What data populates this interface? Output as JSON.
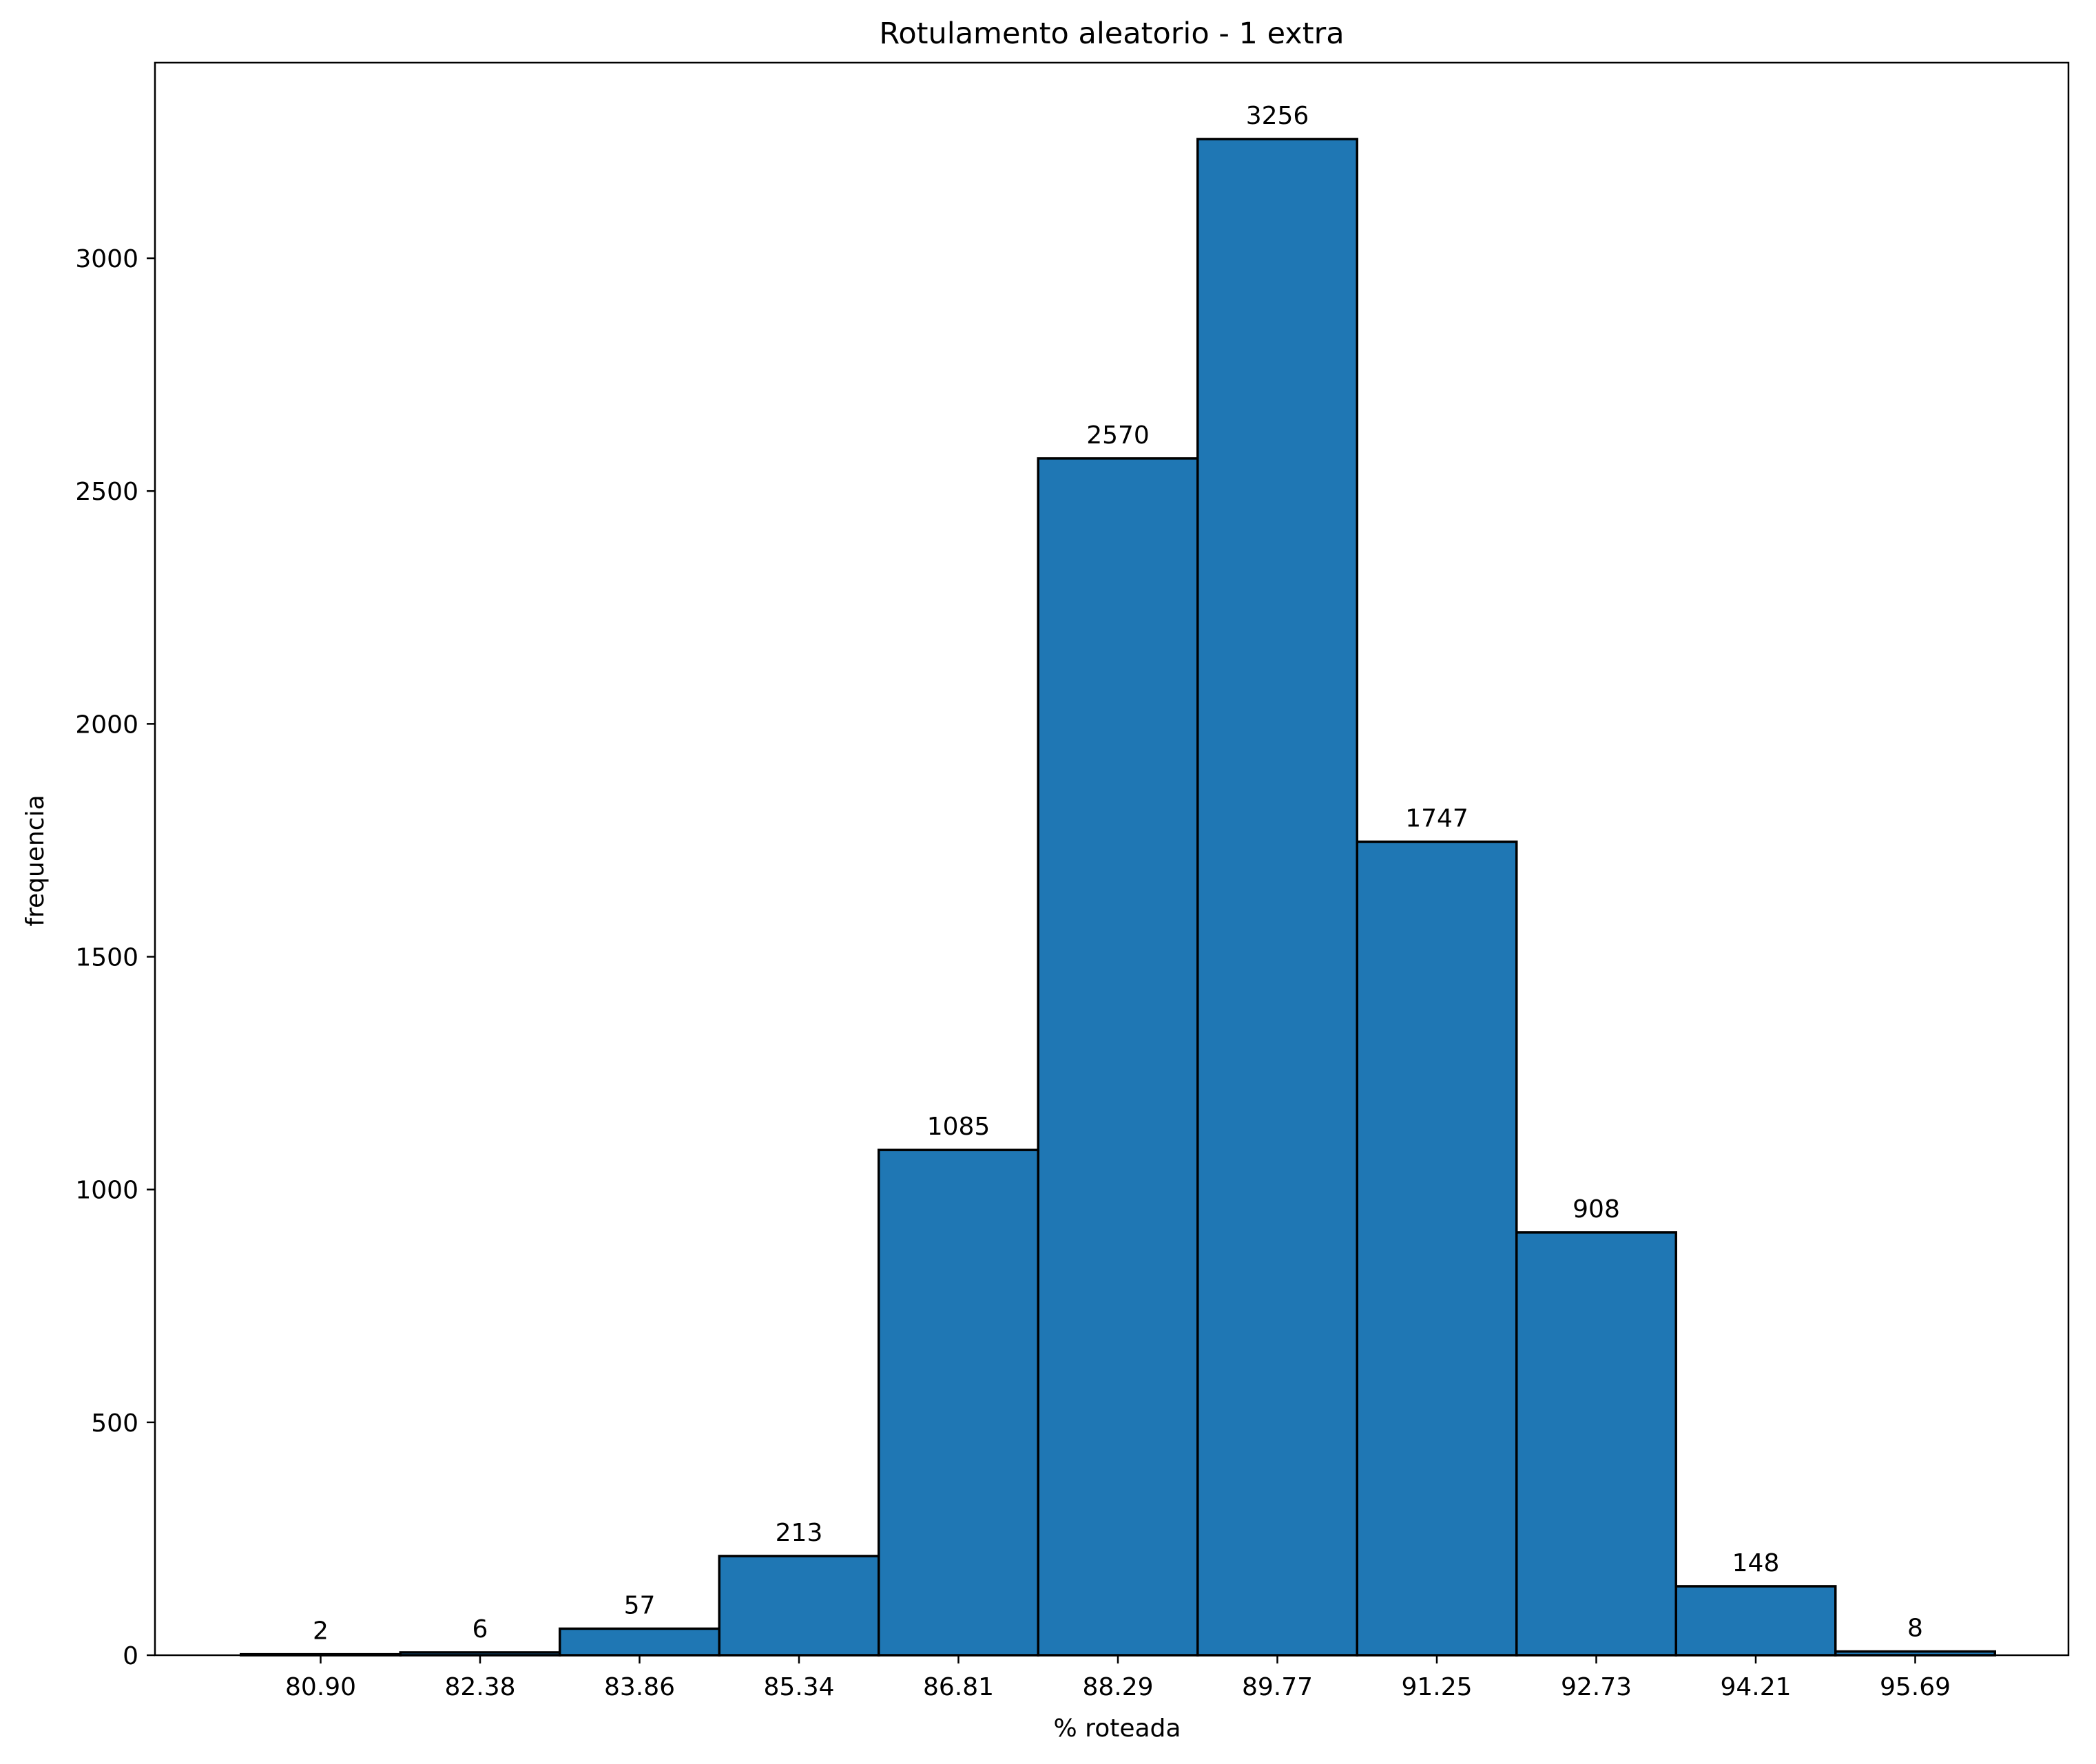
{
  "chart_data": {
    "type": "bar",
    "title": "Rotulamento aleatorio - 1 extra",
    "xlabel": "% roteada",
    "ylabel": "frequencia",
    "categories": [
      "80.90",
      "82.38",
      "83.86",
      "85.34",
      "86.81",
      "88.29",
      "89.77",
      "91.25",
      "92.73",
      "94.21",
      "95.69"
    ],
    "values": [
      2,
      6,
      57,
      213,
      1085,
      2570,
      3256,
      1747,
      908,
      148,
      8
    ],
    "data_labels": [
      "2",
      "6",
      "57",
      "213",
      "1085",
      "2570",
      "3256",
      "1747",
      "908",
      "148",
      "8"
    ],
    "yticks": [
      0,
      500,
      1000,
      1500,
      2000,
      2500,
      3000
    ],
    "ytick_labels": [
      "0",
      "500",
      "1000",
      "1500",
      "2000",
      "2500",
      "3000"
    ],
    "ylim": [
      0,
      3420
    ],
    "grid": false,
    "legend": "none",
    "colors": {
      "bar_fill": "#1f77b4",
      "bar_edge": "#000000",
      "axis": "#000000"
    }
  }
}
